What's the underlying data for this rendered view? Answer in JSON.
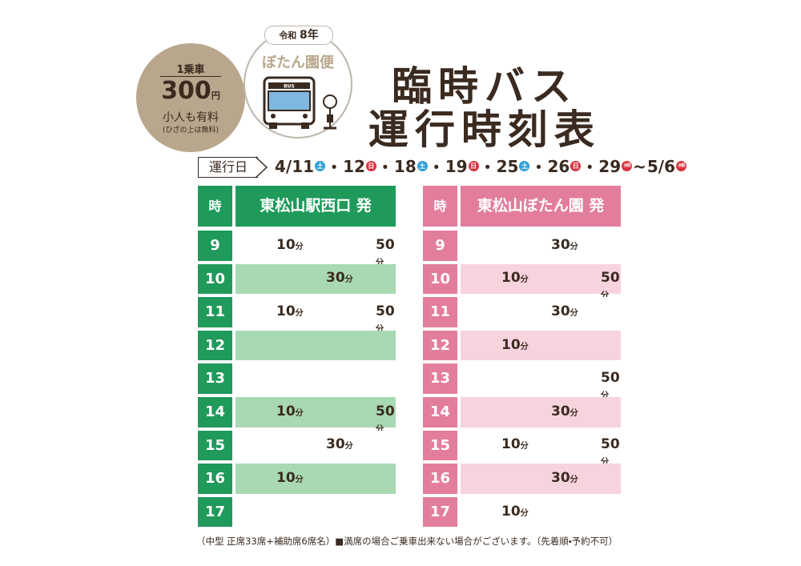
{
  "header": {
    "era": "令和",
    "year": "8年",
    "route": "ぼたん園便",
    "bus_sign": "BUS",
    "title_lines": [
      "臨時バス",
      "運行時刻表"
    ]
  },
  "fare": {
    "label": "1乗車",
    "amount": "300",
    "currency": "円",
    "child_note": "小人も有料",
    "lap_note": "(ひざの上は無料)"
  },
  "schedule": {
    "label": "運行日",
    "dates": [
      {
        "text": "4/11",
        "day": "土"
      },
      {
        "separator": "・",
        "text": "12",
        "day": "日"
      },
      {
        "separator": "・",
        "text": "18",
        "day": "土"
      },
      {
        "separator": "・",
        "text": "19",
        "day": "日"
      },
      {
        "separator": "・",
        "text": "25",
        "day": "土"
      },
      {
        "separator": "・",
        "text": "26",
        "day": "日"
      },
      {
        "separator": "・",
        "text": "29",
        "day": "水祝"
      },
      {
        "separator": "~",
        "text": "5/6",
        "day": "水振"
      }
    ]
  },
  "tables": [
    {
      "hour_header": "時",
      "stop": "東松山駅西口 発",
      "minute_unit": "分",
      "rows": [
        {
          "hour": 9,
          "minutes": [
            10,
            50
          ]
        },
        {
          "hour": 10,
          "minutes": [
            30
          ]
        },
        {
          "hour": 11,
          "minutes": [
            10,
            50
          ]
        },
        {
          "hour": 12,
          "minutes": []
        },
        {
          "hour": 13,
          "minutes": []
        },
        {
          "hour": 14,
          "minutes": [
            10,
            50
          ]
        },
        {
          "hour": 15,
          "minutes": [
            30
          ]
        },
        {
          "hour": 16,
          "minutes": [
            10
          ]
        },
        {
          "hour": 17,
          "minutes": []
        }
      ]
    },
    {
      "hour_header": "時",
      "stop": "東松山ぼたん園 発",
      "minute_unit": "分",
      "rows": [
        {
          "hour": 9,
          "minutes": [
            30
          ]
        },
        {
          "hour": 10,
          "minutes": [
            10,
            50
          ]
        },
        {
          "hour": 11,
          "minutes": [
            30
          ]
        },
        {
          "hour": 12,
          "minutes": [
            10
          ]
        },
        {
          "hour": 13,
          "minutes": [
            50
          ]
        },
        {
          "hour": 14,
          "minutes": [
            30
          ]
        },
        {
          "hour": 15,
          "minutes": [
            10,
            50
          ]
        },
        {
          "hour": 16,
          "minutes": [
            30
          ]
        },
        {
          "hour": 17,
          "minutes": [
            10
          ]
        }
      ]
    }
  ],
  "note": "（中型 正席33席+補助席6席名）■満席の場合ご乗車出来ない場合がございます。（先着順・予約不可）"
}
